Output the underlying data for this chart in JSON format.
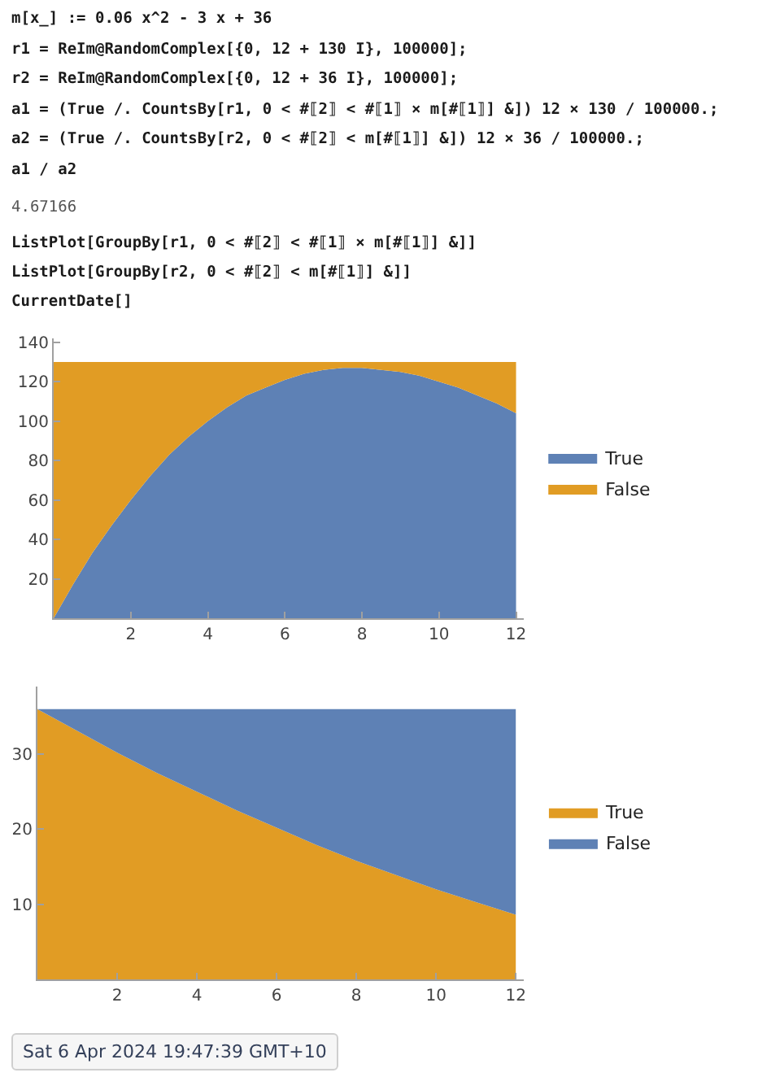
{
  "chart_data": [
    {
      "type": "other",
      "annotations": [
        "m[x_] := 0.06 x^2 - 3 x + 36",
        "r1 = ReIm@RandomComplex[{0, 12 + 130 I}, 100000];",
        "r2 = ReIm@RandomComplex[{0, 12 + 36 I}, 100000];",
        "a1 = (True /. CountsBy[r1, 0 < #⟦2⟧ < #⟦1⟧ × m[#⟦1⟧] &]) 12 × 130 / 100000.;",
        "a2 = (True /. CountsBy[r2, 0 < #⟦2⟧ < m[#⟦1⟧] &]) 12 × 36 / 100000.;",
        "a1 / a2"
      ]
    },
    {
      "type": "other",
      "annotations": [
        "4.67166"
      ]
    },
    {
      "type": "other",
      "annotations": [
        "ListPlot[GroupBy[r1, 0 < #⟦2⟧ < #⟦1⟧ × m[#⟦1⟧] &]]",
        "ListPlot[GroupBy[r2, 0 < #⟦2⟧ < m[#⟦1⟧] &]]",
        "CurrentDate[]"
      ]
    },
    {
      "type": "area",
      "stacked": true,
      "x": [
        0,
        0.5,
        1,
        1.5,
        2,
        2.5,
        3,
        3.5,
        4,
        4.5,
        5,
        5.5,
        6,
        6.5,
        7,
        7.5,
        8,
        8.5,
        9,
        9.5,
        10,
        10.5,
        11,
        11.5,
        12
      ],
      "series": [
        {
          "name": "True",
          "color": "#5e81b5",
          "values": [
            0,
            17,
            33,
            47,
            60,
            72,
            83,
            92,
            100,
            107,
            113,
            117,
            121,
            124,
            126,
            127,
            127,
            126,
            125,
            123,
            120,
            117,
            113,
            109,
            104
          ]
        },
        {
          "name": "False",
          "color": "#e19c24",
          "values": [
            130,
            113,
            97,
            83,
            70,
            58,
            47,
            38,
            30,
            23,
            17,
            13,
            9,
            6,
            4,
            3,
            3,
            4,
            5,
            7,
            10,
            13,
            17,
            21,
            26
          ]
        }
      ],
      "xlim": [
        0,
        12.2
      ],
      "ylim": [
        0,
        142
      ],
      "xticks": [
        2,
        4,
        6,
        8,
        10,
        12
      ],
      "yticks": [
        20,
        40,
        60,
        80,
        100,
        120,
        140
      ],
      "legend": "right"
    },
    {
      "type": "area",
      "stacked": true,
      "x": [
        0,
        1,
        2,
        3,
        4,
        5,
        6,
        7,
        8,
        9,
        10,
        11,
        12
      ],
      "series": [
        {
          "name": "True",
          "color": "#e19c24",
          "values": [
            36,
            33.1,
            30.2,
            27.5,
            25.0,
            22.5,
            20.2,
            17.9,
            15.8,
            13.9,
            12.0,
            10.3,
            8.6
          ]
        },
        {
          "name": "False",
          "color": "#5e81b5",
          "values": [
            0,
            2.9,
            5.8,
            8.5,
            11.0,
            13.5,
            15.8,
            18.1,
            20.2,
            22.1,
            24.0,
            25.7,
            27.4
          ]
        }
      ],
      "xlim": [
        0,
        12.2
      ],
      "ylim": [
        0,
        39
      ],
      "xticks": [
        2,
        4,
        6,
        8,
        10,
        12
      ],
      "yticks": [
        10,
        20,
        30
      ],
      "legend": "right"
    },
    {
      "type": "other",
      "annotations": [
        "Sat 6 Apr 2024 19:47:39 GMT+10"
      ]
    }
  ]
}
